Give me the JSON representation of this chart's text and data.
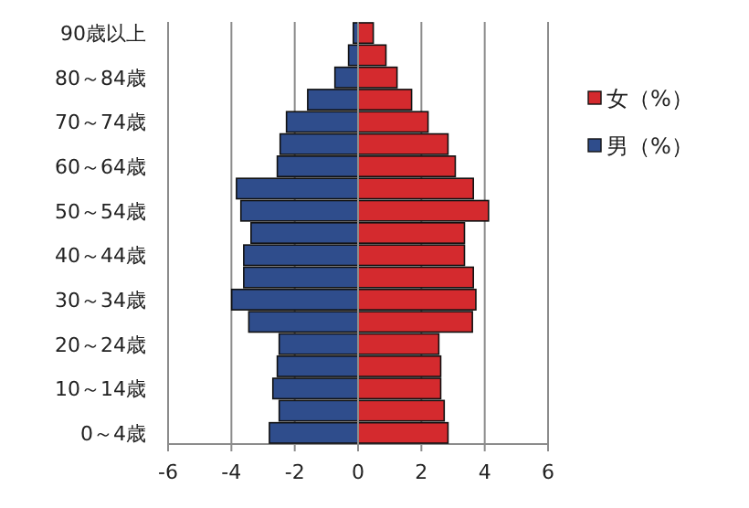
{
  "chart_data": {
    "type": "bar",
    "orientation": "horizontal",
    "stacked": true,
    "categories": [
      "90歳以上",
      null,
      "80～84歳",
      null,
      "70～74歳",
      null,
      "60～64歳",
      null,
      "50～54歳",
      null,
      "40～44歳",
      null,
      "30～34歳",
      null,
      "20～24歳",
      null,
      "10～14歳",
      null,
      "0～4歳"
    ],
    "series": [
      {
        "name": "女（%）",
        "color": "#d42a2e",
        "values": [
          0.48,
          0.88,
          1.23,
          1.69,
          2.21,
          2.84,
          3.07,
          3.64,
          4.12,
          3.36,
          3.36,
          3.64,
          3.72,
          3.61,
          2.55,
          2.61,
          2.61,
          2.72,
          2.84
        ]
      },
      {
        "name": "男（%）",
        "color": "#2f4d8c",
        "values": [
          -0.15,
          -0.3,
          -0.73,
          -1.59,
          -2.26,
          -2.46,
          -2.55,
          -3.84,
          -3.7,
          -3.38,
          -3.61,
          -3.61,
          -3.99,
          -3.45,
          -2.49,
          -2.55,
          -2.69,
          -2.49,
          -2.8
        ]
      }
    ],
    "xlim": [
      -6,
      6
    ],
    "xticks": [
      -6,
      -4,
      -2,
      0,
      2,
      4,
      6
    ],
    "grid": "x",
    "legend": "right"
  }
}
